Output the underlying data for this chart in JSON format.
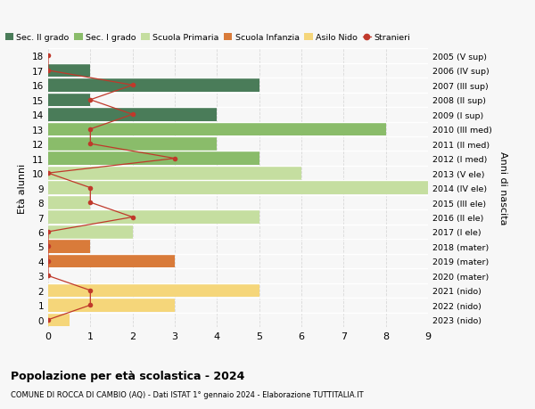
{
  "ages": [
    18,
    17,
    16,
    15,
    14,
    13,
    12,
    11,
    10,
    9,
    8,
    7,
    6,
    5,
    4,
    3,
    2,
    1,
    0
  ],
  "years": [
    "2005 (V sup)",
    "2006 (IV sup)",
    "2007 (III sup)",
    "2008 (II sup)",
    "2009 (I sup)",
    "2010 (III med)",
    "2011 (II med)",
    "2012 (I med)",
    "2013 (V ele)",
    "2014 (IV ele)",
    "2015 (III ele)",
    "2016 (II ele)",
    "2017 (I ele)",
    "2018 (mater)",
    "2019 (mater)",
    "2020 (mater)",
    "2021 (nido)",
    "2022 (nido)",
    "2023 (nido)"
  ],
  "bar_values": [
    0,
    1,
    5,
    1,
    4,
    8,
    4,
    5,
    6,
    9.3,
    1,
    5,
    2,
    1,
    3,
    0,
    5,
    3,
    0.5
  ],
  "bar_colors": [
    "#4a7c59",
    "#4a7c59",
    "#4a7c59",
    "#4a7c59",
    "#4a7c59",
    "#8abc6a",
    "#8abc6a",
    "#8abc6a",
    "#c5dea0",
    "#c5dea0",
    "#c5dea0",
    "#c5dea0",
    "#c5dea0",
    "#d97b3a",
    "#d97b3a",
    "#d97b3a",
    "#f5d67a",
    "#f5d67a",
    "#f5d67a"
  ],
  "stranieri_values": [
    0,
    0,
    2,
    1,
    2,
    1,
    1,
    3,
    0,
    1,
    1,
    2,
    0,
    0,
    0,
    0,
    1,
    1,
    0
  ],
  "dark_green": "#4a7c59",
  "mid_green": "#8abc6a",
  "light_green": "#c5dea0",
  "orange": "#d97b3a",
  "yellow": "#f5d67a",
  "red": "#c0392b",
  "title": "Popolazione per età scolastica - 2024",
  "subtitle": "COMUNE DI ROCCA DI CAMBIO (AQ) - Dati ISTAT 1° gennaio 2024 - Elaborazione TUTTITALIA.IT",
  "ylabel_left": "Età alunni",
  "ylabel_right": "Anni di nascita",
  "xlim": [
    0,
    9
  ],
  "ylim": [
    -0.5,
    18.5
  ],
  "legend_labels": [
    "Sec. II grado",
    "Sec. I grado",
    "Scuola Primaria",
    "Scuola Infanzia",
    "Asilo Nido",
    "Stranieri"
  ],
  "legend_colors": [
    "#4a7c59",
    "#8abc6a",
    "#c5dea0",
    "#d97b3a",
    "#f5d67a",
    "#c0392b"
  ],
  "bg_color": "#f7f7f7",
  "grid_color": "#d8d8d8",
  "bar_height": 0.92
}
